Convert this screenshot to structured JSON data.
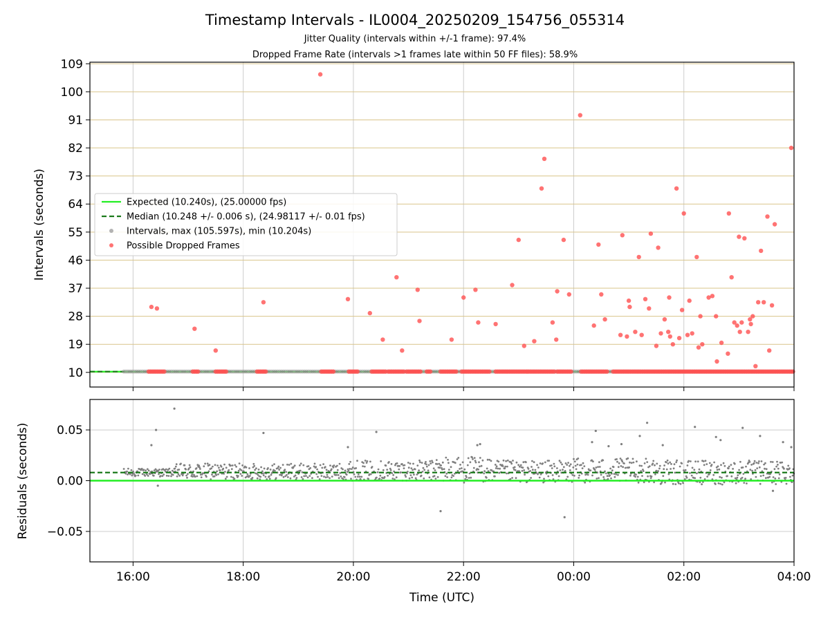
{
  "chart_data": [
    {
      "type": "scatter",
      "title": "Timestamp Intervals - IL0004_20250209_154756_055314",
      "subtitle_lines": [
        "Jitter Quality (intervals within +/-1 frame): 97.4%",
        "Dropped Frame Rate (intervals >1 frames late within 50 FF files): 58.9%"
      ],
      "xlabel": "",
      "ylabel": "Intervals (seconds)",
      "ylim": [
        5.3,
        109.5
      ],
      "yticks": [
        10,
        19,
        28,
        37,
        46,
        55,
        64,
        73,
        82,
        91,
        100,
        109
      ],
      "xlim": [
        "15:13",
        "04:00"
      ],
      "xticks": [
        "16:00",
        "18:00",
        "20:00",
        "22:00",
        "00:00",
        "02:00",
        "04:00"
      ],
      "grid": "vertical lines at x ticks; horizontal lines at y ticks in gold",
      "legend": {
        "placement": "center-left",
        "entries": [
          {
            "label": "Expected (10.240s), (25.00000 fps)",
            "style": "solid-line",
            "color": "#22ee22"
          },
          {
            "label": "Median (10.248 +/- 0.006 s), (24.98117 +/- 0.01 fps)",
            "style": "dashed-line",
            "color": "#1a7a1a"
          },
          {
            "label": "Intervals, max (105.597s), min (10.204s)",
            "style": "marker",
            "color": "#9a9a9a"
          },
          {
            "label": "Possible Dropped Frames",
            "style": "marker",
            "color": "#ff5050"
          }
        ]
      },
      "expected_interval": 10.24,
      "median_interval": 10.248,
      "dropped_frame_band": {
        "y": 10.25,
        "segments": [
          [
            "16:17",
            "16:35"
          ],
          [
            "17:05",
            "17:12"
          ],
          [
            "17:30",
            "17:43"
          ],
          [
            "18:15",
            "18:26"
          ],
          [
            "19:25",
            "19:40"
          ],
          [
            "19:55",
            "20:06"
          ],
          [
            "20:20",
            "20:36"
          ],
          [
            "20:38",
            "20:55"
          ],
          [
            "20:58",
            "21:14"
          ],
          [
            "21:20",
            "21:25"
          ],
          [
            "21:35",
            "21:53"
          ],
          [
            "21:58",
            "22:30"
          ],
          [
            "22:35",
            "22:48"
          ],
          [
            "22:48",
            "23:40"
          ],
          [
            "23:42",
            "23:58"
          ],
          [
            "00:08",
            "00:38"
          ],
          [
            "00:43",
            "04:00"
          ]
        ]
      },
      "interval_band": {
        "y": 10.25,
        "range": [
          "15:50",
          "04:00"
        ]
      },
      "dropped_frames": [
        {
          "x": "16:20",
          "y": 31
        },
        {
          "x": "16:26",
          "y": 30.5
        },
        {
          "x": "17:07",
          "y": 24
        },
        {
          "x": "17:30",
          "y": 17
        },
        {
          "x": "18:22",
          "y": 32.5
        },
        {
          "x": "19:24",
          "y": 105.6
        },
        {
          "x": "19:54",
          "y": 33.5
        },
        {
          "x": "20:18",
          "y": 29
        },
        {
          "x": "20:32",
          "y": 20.5
        },
        {
          "x": "20:47",
          "y": 40.5
        },
        {
          "x": "20:53",
          "y": 17
        },
        {
          "x": "21:10",
          "y": 36.5
        },
        {
          "x": "21:12",
          "y": 26.5
        },
        {
          "x": "21:47",
          "y": 20.5
        },
        {
          "x": "22:00",
          "y": 34
        },
        {
          "x": "22:13",
          "y": 36.5
        },
        {
          "x": "22:16",
          "y": 26
        },
        {
          "x": "22:35",
          "y": 25.5
        },
        {
          "x": "22:53",
          "y": 38
        },
        {
          "x": "23:00",
          "y": 52.5
        },
        {
          "x": "23:06",
          "y": 18.5
        },
        {
          "x": "23:17",
          "y": 20
        },
        {
          "x": "23:25",
          "y": 69
        },
        {
          "x": "23:28",
          "y": 78.5
        },
        {
          "x": "23:37",
          "y": 26
        },
        {
          "x": "23:41",
          "y": 20.5
        },
        {
          "x": "23:42",
          "y": 36
        },
        {
          "x": "23:49",
          "y": 52.5
        },
        {
          "x": "23:55",
          "y": 35
        },
        {
          "x": "00:07",
          "y": 92.5
        },
        {
          "x": "00:22",
          "y": 25
        },
        {
          "x": "00:27",
          "y": 51
        },
        {
          "x": "00:30",
          "y": 35
        },
        {
          "x": "00:34",
          "y": 27
        },
        {
          "x": "00:51",
          "y": 22
        },
        {
          "x": "00:53",
          "y": 54
        },
        {
          "x": "00:58",
          "y": 21.5
        },
        {
          "x": "01:00",
          "y": 33
        },
        {
          "x": "01:01",
          "y": 31
        },
        {
          "x": "01:07",
          "y": 23
        },
        {
          "x": "01:11",
          "y": 47
        },
        {
          "x": "01:14",
          "y": 22
        },
        {
          "x": "01:18",
          "y": 33.5
        },
        {
          "x": "01:22",
          "y": 30.5
        },
        {
          "x": "01:24",
          "y": 54.5
        },
        {
          "x": "01:30",
          "y": 18.5
        },
        {
          "x": "01:32",
          "y": 50
        },
        {
          "x": "01:35",
          "y": 22.5
        },
        {
          "x": "01:39",
          "y": 27
        },
        {
          "x": "01:43",
          "y": 23
        },
        {
          "x": "01:44",
          "y": 34
        },
        {
          "x": "01:45",
          "y": 21.5
        },
        {
          "x": "01:48",
          "y": 19
        },
        {
          "x": "01:52",
          "y": 69
        },
        {
          "x": "01:55",
          "y": 21
        },
        {
          "x": "01:58",
          "y": 30
        },
        {
          "x": "02:00",
          "y": 61
        },
        {
          "x": "02:04",
          "y": 22
        },
        {
          "x": "02:06",
          "y": 33
        },
        {
          "x": "02:09",
          "y": 22.5
        },
        {
          "x": "02:14",
          "y": 47
        },
        {
          "x": "02:16",
          "y": 18
        },
        {
          "x": "02:18",
          "y": 28
        },
        {
          "x": "02:20",
          "y": 19
        },
        {
          "x": "02:27",
          "y": 34
        },
        {
          "x": "02:31",
          "y": 34.5
        },
        {
          "x": "02:35",
          "y": 28
        },
        {
          "x": "02:36",
          "y": 13.5
        },
        {
          "x": "02:41",
          "y": 19.5
        },
        {
          "x": "02:48",
          "y": 16
        },
        {
          "x": "02:49",
          "y": 61
        },
        {
          "x": "02:52",
          "y": 40.5
        },
        {
          "x": "02:55",
          "y": 26
        },
        {
          "x": "02:58",
          "y": 25
        },
        {
          "x": "03:00",
          "y": 53.5
        },
        {
          "x": "03:01",
          "y": 23
        },
        {
          "x": "03:03",
          "y": 26
        },
        {
          "x": "03:06",
          "y": 53
        },
        {
          "x": "03:10",
          "y": 23
        },
        {
          "x": "03:12",
          "y": 27
        },
        {
          "x": "03:13",
          "y": 25.5
        },
        {
          "x": "03:15",
          "y": 28
        },
        {
          "x": "03:18",
          "y": 12
        },
        {
          "x": "03:21",
          "y": 32.5
        },
        {
          "x": "03:24",
          "y": 49
        },
        {
          "x": "03:27",
          "y": 32.5
        },
        {
          "x": "03:31",
          "y": 60
        },
        {
          "x": "03:33",
          "y": 17
        },
        {
          "x": "03:36",
          "y": 31.5
        },
        {
          "x": "03:39",
          "y": 57.5
        },
        {
          "x": "03:57",
          "y": 82
        }
      ]
    },
    {
      "type": "scatter",
      "xlabel": "Time (UTC)",
      "ylabel": "Residuals (seconds)",
      "ylim": [
        -0.08,
        0.08
      ],
      "yticks": [
        -0.05,
        0.0,
        0.05
      ],
      "ytick_labels": [
        "−0.05",
        "0.00",
        "0.05"
      ],
      "xlim": [
        "15:13",
        "04:00"
      ],
      "xticks": [
        "16:00",
        "18:00",
        "20:00",
        "22:00",
        "00:00",
        "02:00",
        "04:00"
      ],
      "grid": "vertical and horizontal grid lines",
      "expected_residual": 0.0,
      "median_residual": 0.008,
      "point_color": "#7f7f7f",
      "residual_bands": [
        {
          "from": "15:50",
          "to": "16:46",
          "low": 0.004,
          "high": 0.012
        },
        {
          "from": "16:46",
          "to": "19:52",
          "low": 0.001,
          "high": 0.017
        },
        {
          "from": "19:52",
          "to": "21:30",
          "low": 0.0,
          "high": 0.02
        },
        {
          "from": "21:30",
          "to": "22:30",
          "low": -0.002,
          "high": 0.024
        },
        {
          "from": "22:30",
          "to": "00:00",
          "low": -0.002,
          "high": 0.02
        },
        {
          "from": "00:00",
          "to": "01:30",
          "low": -0.002,
          "high": 0.022
        },
        {
          "from": "01:30",
          "to": "04:00",
          "low": -0.004,
          "high": 0.02
        }
      ],
      "outliers": [
        {
          "x": "16:45",
          "y": 0.071
        },
        {
          "x": "16:20",
          "y": 0.035
        },
        {
          "x": "16:25",
          "y": 0.05
        },
        {
          "x": "16:27",
          "y": -0.005
        },
        {
          "x": "18:22",
          "y": 0.047
        },
        {
          "x": "20:25",
          "y": 0.048
        },
        {
          "x": "19:54",
          "y": 0.033
        },
        {
          "x": "21:35",
          "y": -0.03
        },
        {
          "x": "22:15",
          "y": 0.035
        },
        {
          "x": "22:18",
          "y": 0.036
        },
        {
          "x": "23:50",
          "y": -0.036
        },
        {
          "x": "00:20",
          "y": 0.038
        },
        {
          "x": "00:24",
          "y": 0.049
        },
        {
          "x": "00:38",
          "y": 0.034
        },
        {
          "x": "00:52",
          "y": 0.036
        },
        {
          "x": "01:20",
          "y": 0.057
        },
        {
          "x": "01:12",
          "y": 0.044
        },
        {
          "x": "01:37",
          "y": 0.035
        },
        {
          "x": "02:12",
          "y": 0.053
        },
        {
          "x": "02:35",
          "y": 0.043
        },
        {
          "x": "02:40",
          "y": 0.04
        },
        {
          "x": "03:04",
          "y": 0.052
        },
        {
          "x": "03:23",
          "y": 0.044
        },
        {
          "x": "03:37",
          "y": -0.01
        },
        {
          "x": "03:48",
          "y": 0.038
        },
        {
          "x": "03:57",
          "y": 0.033
        }
      ]
    }
  ],
  "colors": {
    "expected": "#22ee22",
    "median": "#1a7a1a",
    "interval": "#9a9a9a",
    "dropped": "#ff5050",
    "residual": "#7f7f7f",
    "ygrid_top": "#d9c48a",
    "grid": "#cccccc"
  }
}
